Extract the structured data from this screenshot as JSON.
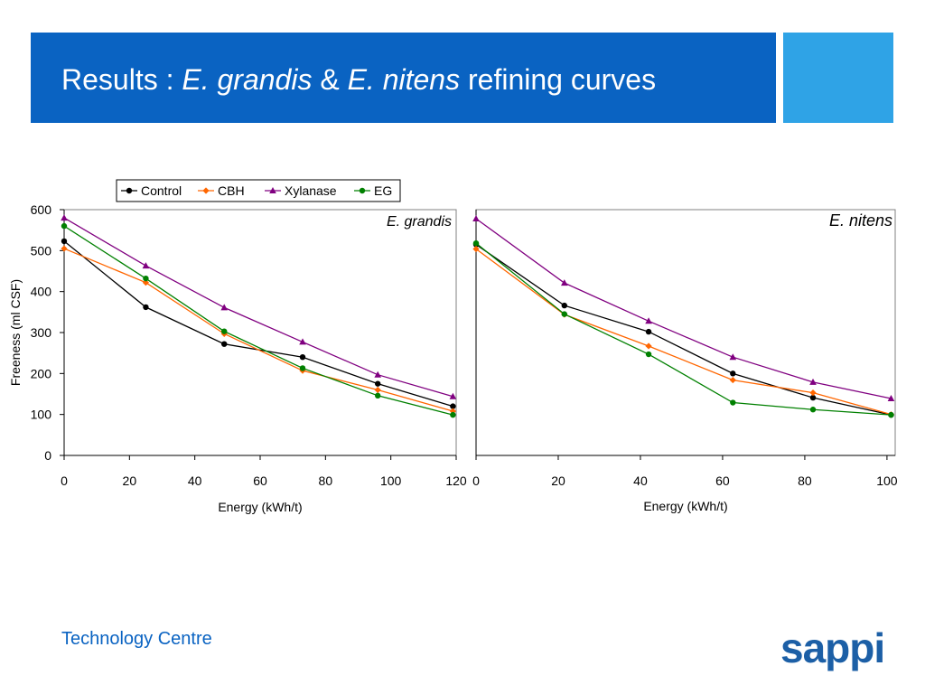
{
  "slide": {
    "title_prefix": "Results : ",
    "title_species1": "E. grandis",
    "title_amp": " & ",
    "title_species2": "E. nitens",
    "title_suffix": " refining curves",
    "footer": "Technology Centre",
    "logo": "sappi"
  },
  "colors": {
    "title_bar": "#0a63c2",
    "title_accent": "#2fa3e6",
    "Control": "#000000",
    "CBH": "#ff6600",
    "Xylanase": "#800080",
    "EG": "#008000"
  },
  "legend": [
    "Control",
    "CBH",
    "Xylanase",
    "EG"
  ],
  "chart_data": [
    {
      "type": "line",
      "panel_label": "E. grandis",
      "xlabel": "Energy (kWh/t)",
      "ylabel": "Freeness (ml CSF)",
      "xlim": [
        0,
        120
      ],
      "ylim": [
        0,
        600
      ],
      "xticks": [
        0,
        20,
        40,
        60,
        80,
        100,
        120
      ],
      "yticks": [
        0,
        100,
        200,
        300,
        400,
        500,
        600
      ],
      "series": [
        {
          "name": "Control",
          "marker": "circle",
          "x": [
            0,
            25,
            49,
            73,
            96,
            119
          ],
          "y": [
            523,
            362,
            272,
            240,
            175,
            120
          ]
        },
        {
          "name": "CBH",
          "marker": "diamond",
          "x": [
            0,
            25,
            49,
            73,
            96,
            119
          ],
          "y": [
            505,
            422,
            297,
            207,
            160,
            108
          ]
        },
        {
          "name": "Xylanase",
          "marker": "triangle",
          "x": [
            0,
            25,
            49,
            73,
            96,
            119
          ],
          "y": [
            580,
            463,
            361,
            277,
            197,
            144
          ]
        },
        {
          "name": "EG",
          "marker": "circle",
          "x": [
            0,
            25,
            49,
            73,
            96,
            119
          ],
          "y": [
            560,
            432,
            303,
            213,
            146,
            99
          ]
        }
      ]
    },
    {
      "type": "line",
      "panel_label": "E. nitens",
      "xlabel": "Energy (kWh/t)",
      "ylabel": "",
      "xlim": [
        0,
        102
      ],
      "ylim": [
        0,
        600
      ],
      "xticks": [
        0,
        20,
        40,
        60,
        80,
        100
      ],
      "yticks": [],
      "series": [
        {
          "name": "Control",
          "marker": "circle",
          "x": [
            0,
            21.5,
            42,
            62.5,
            82,
            101
          ],
          "y": [
            515,
            366,
            302,
            200,
            141,
            99
          ]
        },
        {
          "name": "CBH",
          "marker": "diamond",
          "x": [
            0,
            21.5,
            42,
            62.5,
            82,
            101
          ],
          "y": [
            504,
            344,
            267,
            184,
            153,
            100
          ]
        },
        {
          "name": "Xylanase",
          "marker": "triangle",
          "x": [
            0,
            21.5,
            42,
            62.5,
            82,
            101
          ],
          "y": [
            578,
            421,
            328,
            240,
            179,
            139
          ]
        },
        {
          "name": "EG",
          "marker": "circle",
          "x": [
            0,
            21.5,
            42,
            62.5,
            82,
            101
          ],
          "y": [
            518,
            345,
            247,
            129,
            112,
            99
          ]
        }
      ]
    }
  ]
}
